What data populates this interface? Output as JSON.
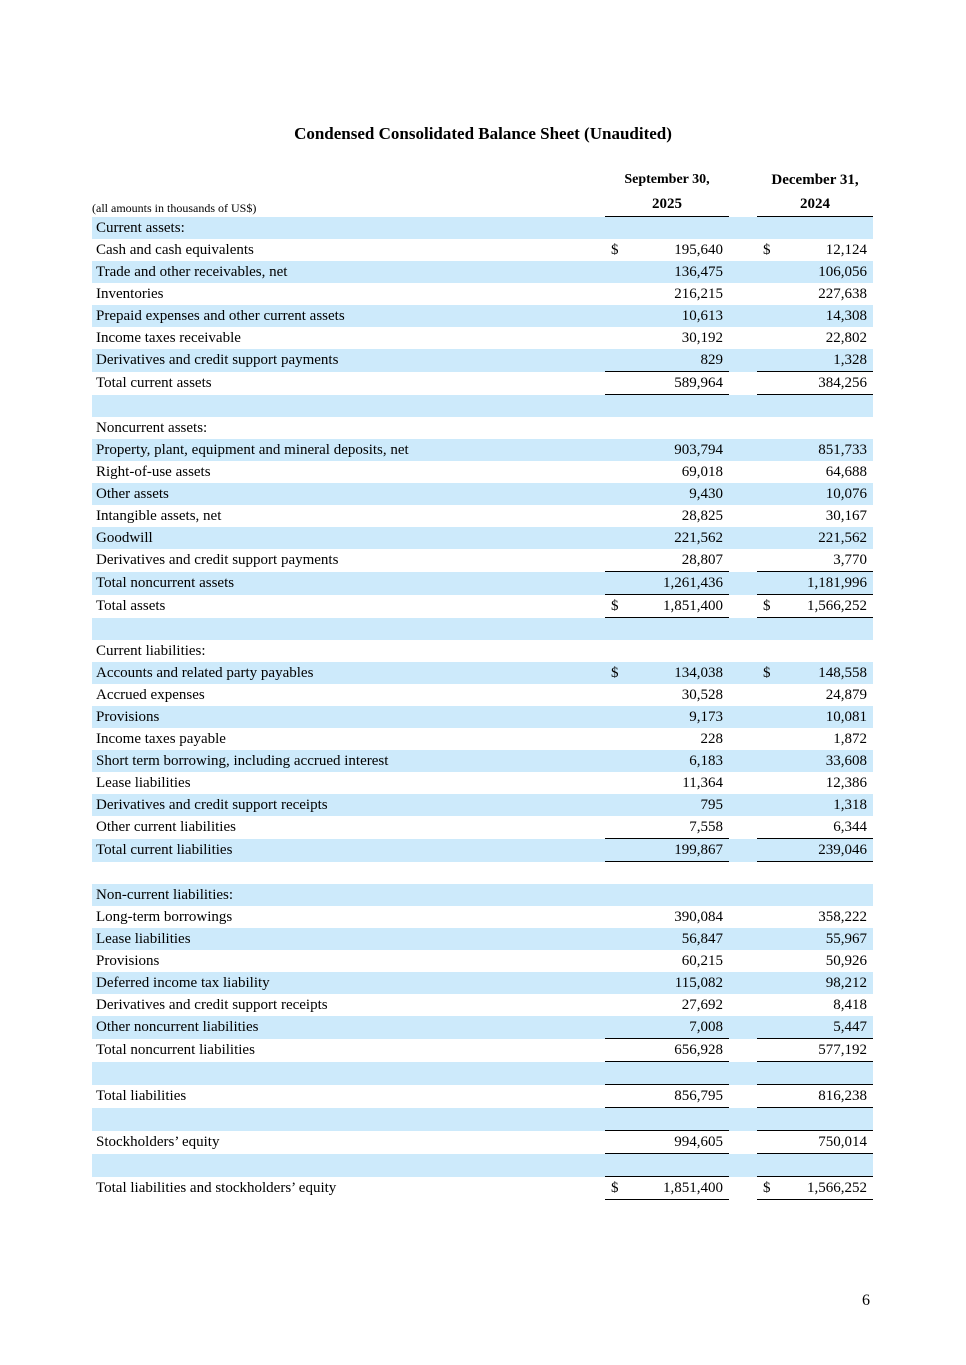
{
  "title": "Condensed Consolidated Balance Sheet (Unaudited)",
  "units_note": "(all amounts in thousands of US$)",
  "columns": [
    {
      "line1": "September 30,",
      "line2": "2025"
    },
    {
      "line1": "December 31,",
      "line2": "2024"
    }
  ],
  "rows": [
    {
      "label": "Current assets:",
      "v1": "",
      "v2": ""
    },
    {
      "label": "Cash and cash equivalents",
      "v1": "195,640",
      "v2": "12,124",
      "currency": "$"
    },
    {
      "label": "Trade and other receivables, net",
      "v1": "136,475",
      "v2": "106,056"
    },
    {
      "label": "Inventories",
      "v1": "216,215",
      "v2": "227,638"
    },
    {
      "label": "Prepaid expenses and other current assets",
      "v1": "10,613",
      "v2": "14,308"
    },
    {
      "label": "Income taxes receivable",
      "v1": "30,192",
      "v2": "22,802"
    },
    {
      "label": "Derivatives and credit support payments",
      "v1": "829",
      "v2": "1,328"
    },
    {
      "label": "Total current assets",
      "v1": "589,964",
      "v2": "384,256"
    },
    {
      "label": "",
      "v1": "",
      "v2": ""
    },
    {
      "label": "Noncurrent assets:",
      "v1": "",
      "v2": ""
    },
    {
      "label": "Property, plant, equipment and mineral deposits, net",
      "v1": "903,794",
      "v2": "851,733"
    },
    {
      "label": "Right-of-use assets",
      "v1": "69,018",
      "v2": "64,688"
    },
    {
      "label": "Other assets",
      "v1": "9,430",
      "v2": "10,076"
    },
    {
      "label": "Intangible assets, net",
      "v1": "28,825",
      "v2": "30,167"
    },
    {
      "label": "Goodwill",
      "v1": "221,562",
      "v2": "221,562"
    },
    {
      "label": "Derivatives and credit support payments",
      "v1": "28,807",
      "v2": "3,770"
    },
    {
      "label": "Total noncurrent assets",
      "v1": "1,261,436",
      "v2": "1,181,996"
    },
    {
      "label": "Total assets",
      "v1": "1,851,400",
      "v2": "1,566,252",
      "currency": "$"
    },
    {
      "label": "",
      "v1": "",
      "v2": ""
    },
    {
      "label": "Current liabilities:",
      "v1": "",
      "v2": ""
    },
    {
      "label": "Accounts and related party payables",
      "v1": "134,038",
      "v2": "148,558",
      "currency": "$"
    },
    {
      "label": "Accrued expenses",
      "v1": "30,528",
      "v2": "24,879"
    },
    {
      "label": "Provisions",
      "v1": "9,173",
      "v2": "10,081"
    },
    {
      "label": "Income taxes payable",
      "v1": "228",
      "v2": "1,872"
    },
    {
      "label": "Short term borrowing, including accrued interest",
      "v1": "6,183",
      "v2": "33,608"
    },
    {
      "label": "Lease liabilities",
      "v1": "11,364",
      "v2": "12,386"
    },
    {
      "label": "Derivatives and credit support receipts",
      "v1": "795",
      "v2": "1,318"
    },
    {
      "label": "Other current liabilities",
      "v1": "7,558",
      "v2": "6,344"
    },
    {
      "label": "Total current liabilities",
      "v1": "199,867",
      "v2": "239,046"
    },
    {
      "label": "",
      "v1": "",
      "v2": ""
    },
    {
      "label": "Non-current liabilities:",
      "v1": "",
      "v2": ""
    },
    {
      "label": "Long-term borrowings",
      "v1": "390,084",
      "v2": "358,222"
    },
    {
      "label": "Lease liabilities",
      "v1": "56,847",
      "v2": "55,967"
    },
    {
      "label": "Provisions",
      "v1": "60,215",
      "v2": "50,926"
    },
    {
      "label": "Deferred income tax liability",
      "v1": "115,082",
      "v2": "98,212"
    },
    {
      "label": "Derivatives and credit support receipts",
      "v1": "27,692",
      "v2": "8,418"
    },
    {
      "label": "Other noncurrent liabilities",
      "v1": "7,008",
      "v2": "5,447"
    },
    {
      "label": "Total noncurrent liabilities",
      "v1": "656,928",
      "v2": "577,192"
    },
    {
      "label": "",
      "v1": "",
      "v2": ""
    },
    {
      "label": "Total liabilities",
      "v1": "856,795",
      "v2": "816,238"
    },
    {
      "label": "",
      "v1": "",
      "v2": ""
    },
    {
      "label": "Stockholders’ equity",
      "v1": "994,605",
      "v2": "750,014"
    },
    {
      "label": "",
      "v1": "",
      "v2": ""
    },
    {
      "label": "Total liabilities and stockholders’ equity",
      "v1": "1,851,400",
      "v2": "1,566,252",
      "currency": "$"
    }
  ],
  "stripe_color": "#cdeafb",
  "page_number": "6"
}
